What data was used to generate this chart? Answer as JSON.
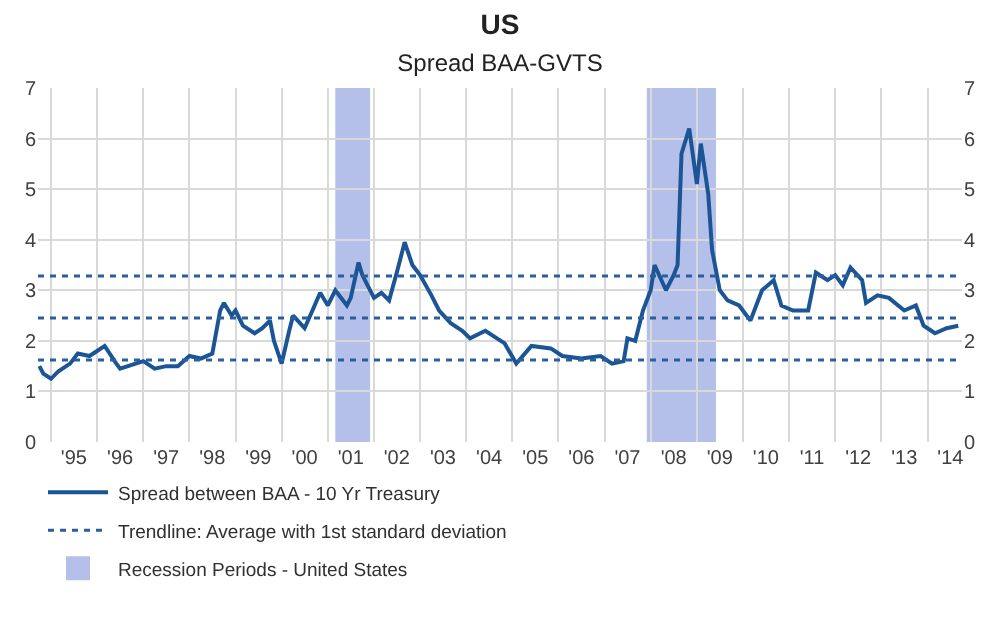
{
  "chart_data": {
    "type": "line",
    "title": "US",
    "subtitle": "Spread BAA-GVTS",
    "xlim": [
      "1994-09-20",
      "2014-10-01"
    ],
    "ylim": [
      0,
      7
    ],
    "yticks": [
      0,
      1,
      2,
      3,
      4,
      5,
      6,
      7
    ],
    "y2lim": [
      0,
      7
    ],
    "y2ticks": [
      0,
      1,
      2,
      3,
      4,
      5,
      6,
      7
    ],
    "xticks": [
      {
        "value": "1995-01-01",
        "label": null
      },
      {
        "value": "1995-07-01",
        "label": "'95"
      },
      {
        "value": "1996-01-01",
        "label": null
      },
      {
        "value": "1996-07-01",
        "label": "'96"
      },
      {
        "value": "1997-01-01",
        "label": null
      },
      {
        "value": "1997-07-01",
        "label": "'97"
      },
      {
        "value": "1998-01-01",
        "label": null
      },
      {
        "value": "1998-07-01",
        "label": "'98"
      },
      {
        "value": "1999-01-01",
        "label": null
      },
      {
        "value": "1999-07-01",
        "label": "'99"
      },
      {
        "value": "2000-01-01",
        "label": null
      },
      {
        "value": "2000-07-01",
        "label": "'00"
      },
      {
        "value": "2001-01-01",
        "label": null
      },
      {
        "value": "2001-07-01",
        "label": "'01"
      },
      {
        "value": "2002-01-01",
        "label": null
      },
      {
        "value": "2002-07-01",
        "label": "'02"
      },
      {
        "value": "2003-01-01",
        "label": null
      },
      {
        "value": "2003-07-01",
        "label": "'03"
      },
      {
        "value": "2004-01-01",
        "label": null
      },
      {
        "value": "2004-07-01",
        "label": "'04"
      },
      {
        "value": "2005-01-01",
        "label": null
      },
      {
        "value": "2005-07-01",
        "label": "'05"
      },
      {
        "value": "2006-01-01",
        "label": null
      },
      {
        "value": "2006-07-01",
        "label": "'06"
      },
      {
        "value": "2007-01-01",
        "label": null
      },
      {
        "value": "2007-07-01",
        "label": "'07"
      },
      {
        "value": "2008-01-01",
        "label": null
      },
      {
        "value": "2008-07-01",
        "label": "'08"
      },
      {
        "value": "2009-01-01",
        "label": null
      },
      {
        "value": "2009-07-01",
        "label": "'09"
      },
      {
        "value": "2010-01-01",
        "label": null
      },
      {
        "value": "2010-07-01",
        "label": "'10"
      },
      {
        "value": "2011-01-01",
        "label": null
      },
      {
        "value": "2011-07-01",
        "label": "'11"
      },
      {
        "value": "2012-01-01",
        "label": null
      },
      {
        "value": "2012-07-01",
        "label": "'12"
      },
      {
        "value": "2013-01-01",
        "label": null
      },
      {
        "value": "2013-07-01",
        "label": "'13"
      },
      {
        "value": "2014-01-01",
        "label": null
      },
      {
        "value": "2014-07-01",
        "label": "'14"
      }
    ],
    "grid": true,
    "legend": "bottom",
    "line_style": "solid",
    "marker": "none",
    "series": [
      {
        "name": "Spread between BAA - 10 Yr Treasury",
        "color": "#1b5596",
        "x": [
          "1994-10",
          "1994-11",
          "1995-01",
          "1995-03",
          "1995-06",
          "1995-08",
          "1995-11",
          "1996-01",
          "1996-03",
          "1996-06",
          "1996-07",
          "1996-11",
          "1997-01",
          "1997-04",
          "1997-07",
          "1997-10",
          "1998-01",
          "1998-04",
          "1998-07",
          "1998-09",
          "1998-10",
          "1998-12",
          "1999-01",
          "1999-03",
          "1999-06",
          "1999-08",
          "1999-10",
          "1999-11",
          "2000-01",
          "2000-03",
          "2000-04",
          "2000-07",
          "2000-09",
          "2000-11",
          "2001-01",
          "2001-03",
          "2001-06",
          "2001-07",
          "2001-09",
          "2001-10",
          "2002-01",
          "2002-03",
          "2002-05",
          "2002-07",
          "2002-09",
          "2002-11",
          "2003-01",
          "2003-04",
          "2003-06",
          "2003-09",
          "2003-12",
          "2004-02",
          "2004-06",
          "2004-09",
          "2004-11",
          "2005-02",
          "2005-06",
          "2005-11",
          "2006-02",
          "2006-07",
          "2006-12",
          "2007-03",
          "2007-06",
          "2007-07",
          "2007-09",
          "2007-11",
          "2008-01",
          "2008-02",
          "2008-05",
          "2008-07",
          "2008-08",
          "2008-09",
          "2008-11",
          "2009-01",
          "2009-02",
          "2009-04",
          "2009-05",
          "2009-07",
          "2009-09",
          "2009-12",
          "2010-03",
          "2010-06",
          "2010-09",
          "2010-11",
          "2011-02",
          "2011-06",
          "2011-08",
          "2011-11",
          "2012-01",
          "2012-03",
          "2012-05",
          "2012-08",
          "2012-09",
          "2012-12",
          "2013-03",
          "2013-07",
          "2013-10",
          "2013-12",
          "2014-01",
          "2014-03",
          "2014-06",
          "2014-09"
        ],
        "values": [
          1.5,
          1.35,
          1.25,
          1.4,
          1.55,
          1.75,
          1.7,
          1.8,
          1.9,
          1.55,
          1.45,
          1.55,
          1.6,
          1.45,
          1.5,
          1.5,
          1.7,
          1.65,
          1.75,
          2.6,
          2.75,
          2.5,
          2.6,
          2.3,
          2.15,
          2.25,
          2.4,
          2.0,
          1.55,
          2.2,
          2.5,
          2.25,
          2.6,
          2.95,
          2.7,
          3.0,
          2.7,
          2.85,
          3.55,
          3.3,
          2.85,
          2.95,
          2.8,
          3.35,
          3.95,
          3.5,
          3.3,
          2.9,
          2.6,
          2.35,
          2.2,
          2.05,
          2.2,
          2.05,
          1.95,
          1.55,
          1.9,
          1.85,
          1.7,
          1.65,
          1.7,
          1.55,
          1.6,
          2.05,
          2.0,
          2.6,
          3.0,
          3.5,
          3.0,
          3.3,
          3.5,
          5.7,
          6.2,
          5.1,
          5.9,
          4.9,
          3.8,
          3.0,
          2.8,
          2.7,
          2.4,
          3.0,
          3.2,
          2.7,
          2.6,
          2.6,
          3.35,
          3.2,
          3.3,
          3.1,
          3.45,
          3.2,
          2.75,
          2.9,
          2.85,
          2.6,
          2.7,
          2.3,
          2.25,
          2.15,
          2.25,
          2.3
        ]
      }
    ],
    "ref_lines": [
      {
        "axis": "y",
        "value": 3.28,
        "label": "Trendline: Average with 1st standard deviation",
        "color": "#2a5f9e",
        "line_style": "dotted"
      },
      {
        "axis": "y",
        "value": 2.45,
        "color": "#2a5f9e",
        "line_style": "dotted"
      },
      {
        "axis": "y",
        "value": 1.62,
        "color": "#2a5f9e",
        "line_style": "dotted"
      }
    ],
    "bands": [
      {
        "axis": "x",
        "from": "2001-03",
        "to": "2001-12",
        "label": "Recession Periods - United States",
        "color": "#b4c0ea"
      },
      {
        "axis": "x",
        "from": "2007-12",
        "to": "2009-06",
        "color": "#b4c0ea"
      }
    ]
  }
}
